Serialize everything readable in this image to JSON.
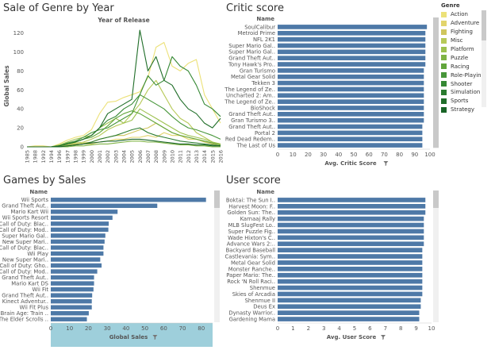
{
  "colors": {
    "bar": "#4e79a7",
    "scroll_track": "#f0f0f0",
    "scroll_thumb": "#c9c9c9",
    "highlight": "#9ecfdb",
    "genre_ramp": [
      "#ece178",
      "#e2d46c",
      "#cfc65e",
      "#b7c958",
      "#9dc14e",
      "#7fb344",
      "#61a53b",
      "#47963a",
      "#358834",
      "#2a7b2f",
      "#206e29",
      "#196426"
    ]
  },
  "sales_by_year": {
    "title": "Sale of Genre by Year",
    "chart_data": {
      "type": "line",
      "title": "Year of Release",
      "xlabel": "",
      "ylabel": "Global Sales",
      "x": [
        "1985",
        "1988",
        "1992",
        "1994",
        "1996",
        "1997",
        "1998",
        "1999",
        "2000",
        "2001",
        "2002",
        "2003",
        "2004",
        "2005",
        "2006",
        "2007",
        "2008",
        "2009",
        "2010",
        "2011",
        "2012",
        "2013",
        "2014",
        "2015",
        "2016"
      ],
      "yticks": [
        "0",
        "20",
        "40",
        "60",
        "80",
        "100",
        "120"
      ],
      "ylim": [
        0,
        128
      ],
      "grid": false,
      "series": [
        {
          "name": "Action",
          "values": [
            0,
            1,
            1,
            0,
            3,
            7,
            10,
            12,
            18,
            35,
            47,
            48,
            52,
            55,
            58,
            73,
            105,
            110,
            85,
            80,
            88,
            92,
            55,
            40,
            25
          ]
        },
        {
          "name": "Adventure",
          "values": [
            0,
            0,
            0,
            0,
            0,
            1,
            2,
            3,
            3,
            5,
            6,
            8,
            8,
            10,
            10,
            12,
            10,
            15,
            12,
            12,
            8,
            8,
            6,
            4,
            2
          ]
        },
        {
          "name": "Fighting",
          "values": [
            0,
            0,
            0,
            0,
            1,
            2,
            3,
            4,
            5,
            8,
            10,
            12,
            12,
            15,
            18,
            20,
            25,
            20,
            15,
            12,
            10,
            8,
            5,
            3,
            2
          ]
        },
        {
          "name": "Misc",
          "values": [
            0,
            0,
            0,
            0,
            0,
            2,
            4,
            5,
            8,
            12,
            18,
            22,
            25,
            35,
            45,
            60,
            70,
            55,
            40,
            30,
            25,
            15,
            10,
            5,
            3
          ]
        },
        {
          "name": "Platform",
          "values": [
            0,
            0,
            0,
            0,
            2,
            5,
            8,
            10,
            12,
            20,
            25,
            30,
            25,
            28,
            40,
            35,
            30,
            25,
            20,
            15,
            12,
            10,
            8,
            5,
            3
          ]
        },
        {
          "name": "Puzzle",
          "values": [
            0,
            0,
            0,
            0,
            0,
            0,
            1,
            1,
            2,
            3,
            3,
            4,
            5,
            6,
            6,
            5,
            5,
            4,
            3,
            2,
            2,
            1,
            1,
            0,
            0
          ]
        },
        {
          "name": "Racing",
          "values": [
            0,
            0,
            0,
            0,
            1,
            3,
            5,
            8,
            10,
            15,
            22,
            30,
            35,
            38,
            35,
            30,
            25,
            20,
            15,
            12,
            10,
            8,
            6,
            4,
            2
          ]
        },
        {
          "name": "Role-Playing",
          "values": [
            0,
            0,
            0,
            0,
            1,
            4,
            6,
            10,
            15,
            18,
            20,
            25,
            30,
            35,
            55,
            50,
            45,
            40,
            32,
            25,
            20,
            18,
            15,
            12,
            8
          ]
        },
        {
          "name": "Shooter",
          "values": [
            0,
            0,
            0,
            0,
            1,
            3,
            5,
            8,
            12,
            20,
            28,
            32,
            40,
            45,
            55,
            75,
            65,
            70,
            95,
            85,
            80,
            65,
            45,
            40,
            32
          ]
        },
        {
          "name": "Simulation",
          "values": [
            0,
            0,
            0,
            0,
            0,
            1,
            2,
            3,
            5,
            8,
            10,
            12,
            15,
            18,
            20,
            15,
            12,
            10,
            8,
            6,
            5,
            4,
            3,
            2,
            1
          ]
        },
        {
          "name": "Sports",
          "values": [
            0,
            0,
            0,
            0,
            1,
            3,
            5,
            8,
            12,
            20,
            35,
            40,
            45,
            50,
            123,
            80,
            95,
            70,
            65,
            50,
            40,
            35,
            25,
            20,
            30
          ]
        },
        {
          "name": "Strategy",
          "values": [
            0,
            0,
            0,
            0,
            0,
            1,
            2,
            3,
            4,
            5,
            6,
            6,
            7,
            8,
            8,
            7,
            6,
            5,
            4,
            3,
            3,
            2,
            2,
            1,
            1
          ]
        }
      ]
    }
  },
  "legend": {
    "title": "Genre",
    "items": [
      "Action",
      "Adventure",
      "Fighting",
      "Misc",
      "Platform",
      "Puzzle",
      "Racing",
      "Role-Playing",
      "Shooter",
      "Simulation",
      "Sports",
      "Strategy"
    ]
  },
  "critic_score": {
    "title": "Critic score",
    "filter_icon": "filter-icon",
    "chart_data": {
      "type": "bar",
      "column_header": "Name",
      "categories": [
        "SoulCalibur",
        "Metroid Prime",
        "NFL 2K1",
        "Super Mario Gal..",
        "Super Mario Gal..",
        "Grand Theft Aut..",
        "Tony Hawk's Pro..",
        "Gran Turismo",
        "Metal Gear Solid",
        "Tekken 3",
        "The Legend of Ze..",
        "Uncharted 2: Am..",
        "The Legend of Ze..",
        "BioShock",
        "Grand Theft Aut..",
        "Gran Turismo 3..",
        "Grand Theft Aut..",
        "Portal 2",
        "Red Dead Redem..",
        "The Last of Us"
      ],
      "values": [
        98,
        97,
        97,
        97,
        97,
        97,
        97,
        96,
        96,
        96,
        96,
        96,
        96,
        96,
        96,
        96,
        95,
        95,
        95,
        95
      ],
      "xlabel": "Avg. Critic Score",
      "xticks": [
        "0",
        "10",
        "20",
        "30",
        "40",
        "50",
        "60",
        "70",
        "80",
        "90",
        "100"
      ],
      "xlim": [
        0,
        100
      ]
    }
  },
  "games_by_sales": {
    "title": "Games by Sales",
    "filter_icon": "filter-icon",
    "chart_data": {
      "type": "bar",
      "column_header": "Name",
      "categories": [
        "Wii Sports",
        "Grand Theft Aut..",
        "Mario Kart Wii",
        "Wii Sports Resort",
        "Call of Duty: Blac..",
        "Call of Duty: Mod..",
        "Super Mario Gal..",
        "New Super Mari..",
        "Call of Duty: Blac..",
        "Wii Play",
        "New Super Mari..",
        "Call of Duty: Gho..",
        "Call of Duty: Mod..",
        "Grand Theft Aut..",
        "Mario Kart DS",
        "Wii Fit",
        "Grand Theft Aut..",
        "Kinect Adventur..",
        "Wii Fit Plus",
        "Brain Age: Train ..",
        "The Elder Scrolls .."
      ],
      "values": [
        82.5,
        56.6,
        35.5,
        32.8,
        30.8,
        30.6,
        29.0,
        28.6,
        28.0,
        28.0,
        26.3,
        27.0,
        24.7,
        23.0,
        23.0,
        22.7,
        22.0,
        21.8,
        21.8,
        20.2,
        19.2
      ],
      "xlabel": "Global Sales",
      "xticks": [
        "0",
        "10",
        "20",
        "30",
        "40",
        "50",
        "60",
        "70",
        "80"
      ],
      "xlim": [
        0,
        86
      ]
    }
  },
  "user_score": {
    "title": "User score",
    "filter_icon": "filter-icon",
    "chart_data": {
      "type": "bar",
      "column_header": "Name",
      "categories": [
        "Boktai: The Sun I..",
        "Harvest Moon: F..",
        "Golden Sun: The..",
        "Karnaaj Rally",
        "MLB SlugFest Lo..",
        "Super Puzzle Fig..",
        "Wade Hixton's C..",
        "Advance Wars 2:..",
        "Backyard Baseball",
        "Castlevania: Sym..",
        "Metal Gear Solid",
        "Monster Ranche..",
        "Paper Mario: The..",
        "Rock 'N Roll Raci..",
        "Shenmue",
        "Skies of Arcadia",
        "Shenmue II",
        "Deus Ex",
        "Dynasty Warrior..",
        "Gardening Mama"
      ],
      "values": [
        9.6,
        9.6,
        9.6,
        9.5,
        9.5,
        9.5,
        9.5,
        9.5,
        9.4,
        9.4,
        9.4,
        9.4,
        9.4,
        9.4,
        9.4,
        9.4,
        9.3,
        9.3,
        9.2,
        9.2
      ],
      "xlabel": "Avg. User Score",
      "xticks": [
        "0",
        "1",
        "2",
        "3",
        "4",
        "5",
        "6",
        "7",
        "8",
        "9",
        "10"
      ],
      "xlim": [
        0,
        10
      ]
    }
  }
}
